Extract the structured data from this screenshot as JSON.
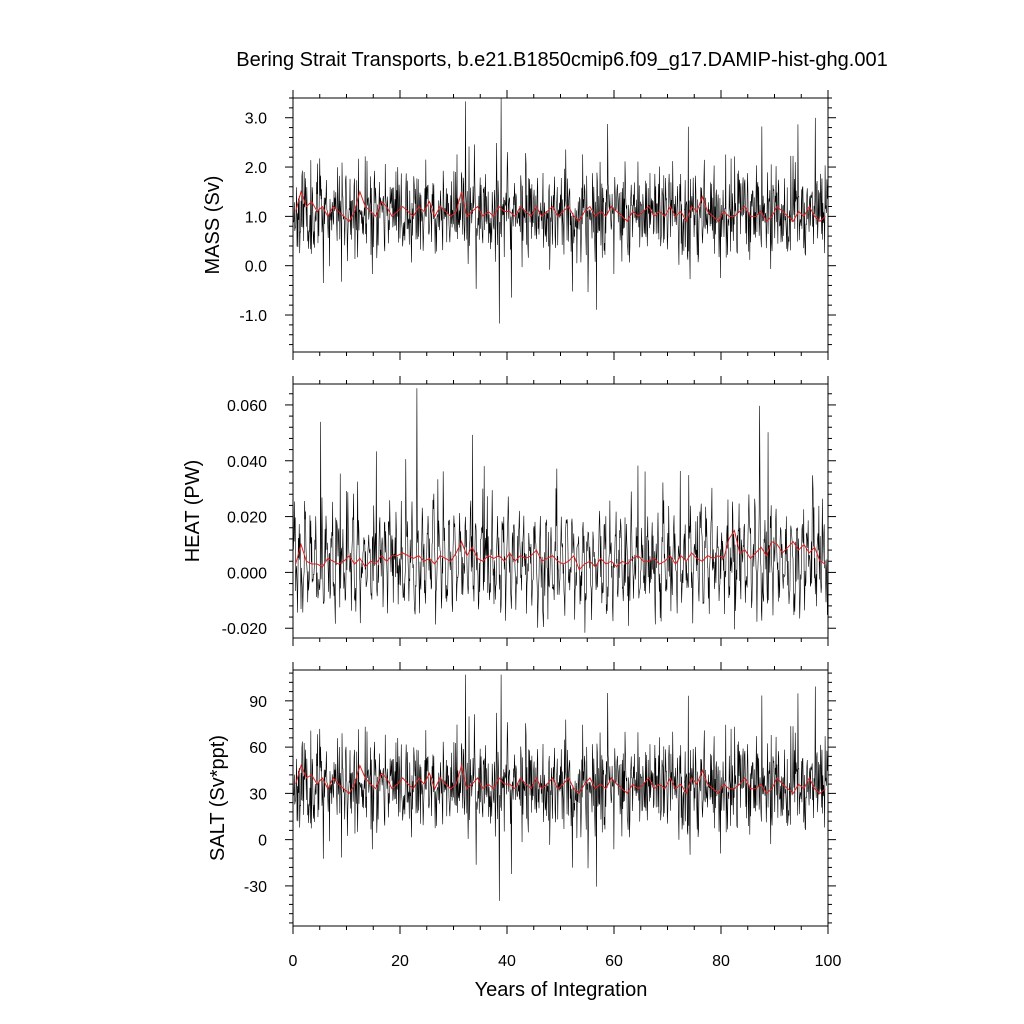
{
  "title": "Bering Strait Transports, b.e21.B1850cmip6.f09_g17.DAMIP-hist-ghg.001",
  "xlabel": "Years of Integration",
  "colors": {
    "raw": "#000000",
    "smoothed": "#e02020"
  },
  "chart_data": [
    {
      "type": "line",
      "ylabel": "MASS (Sv)",
      "xlim": [
        0,
        100
      ],
      "ylim": [
        -1.75,
        3.4
      ],
      "yticks": [
        -1.0,
        0.0,
        1.0,
        2.0,
        3.0
      ],
      "ytick_labels": [
        "-1.0",
        "0.0",
        "1.0",
        "2.0",
        "3.0"
      ],
      "xticks": [
        0,
        20,
        40,
        60,
        80,
        100
      ],
      "xtick_labels": [
        "0",
        "20",
        "40",
        "60",
        "80",
        "100"
      ],
      "series": [
        {
          "style": "monthly",
          "x_step": 0.0833,
          "mean": 1.1,
          "spread": 0.45,
          "min": -1.7,
          "max": 3.4,
          "seed": 11
        },
        {
          "style": "annual",
          "x": [
            0,
            1,
            2,
            3,
            4,
            5,
            6,
            7,
            8,
            9,
            10,
            11,
            12,
            13,
            14,
            15,
            16,
            17,
            18,
            19,
            20,
            21,
            22,
            23,
            24,
            25,
            26,
            27,
            28,
            29,
            30,
            31,
            32,
            33,
            34,
            35,
            36,
            37,
            38,
            39,
            40,
            41,
            42,
            43,
            44,
            45,
            46,
            47,
            48,
            49,
            50,
            51,
            52,
            53,
            54,
            55,
            56,
            57,
            58,
            59,
            60,
            61,
            62,
            63,
            64,
            65,
            66,
            67,
            68,
            69,
            70,
            71,
            72,
            73,
            74,
            75,
            76,
            77,
            78,
            79,
            80,
            81,
            82,
            83,
            84,
            85,
            86,
            87,
            88,
            89,
            90,
            91,
            92,
            93,
            94,
            95,
            96,
            97,
            98,
            99
          ],
          "y": [
            1.1,
            1.5,
            1.2,
            1.3,
            1.1,
            1.2,
            1.0,
            1.2,
            1.1,
            1.0,
            0.9,
            1.1,
            1.5,
            1.2,
            1.1,
            1.0,
            1.3,
            1.2,
            1.0,
            1.1,
            1.2,
            1.1,
            1.0,
            1.2,
            1.1,
            1.3,
            1.0,
            1.2,
            1.1,
            1.0,
            1.1,
            1.5,
            1.0,
            1.1,
            1.2,
            1.0,
            1.1,
            1.0,
            1.2,
            1.1,
            1.1,
            1.0,
            1.2,
            1.1,
            1.0,
            1.2,
            1.0,
            1.1,
            1.2,
            1.0,
            1.1,
            1.2,
            1.0,
            0.9,
            1.1,
            1.2,
            1.0,
            1.1,
            1.0,
            1.2,
            1.1,
            1.0,
            0.9,
            1.1,
            1.0,
            1.1,
            1.2,
            1.0,
            1.1,
            1.0,
            1.2,
            1.0,
            1.1,
            0.9,
            1.2,
            1.1,
            1.4,
            1.1,
            1.0,
            0.9,
            1.1,
            1.0,
            1.0,
            1.1,
            1.2,
            1.0,
            1.0,
            1.1,
            0.9,
            1.0,
            1.2,
            1.1,
            1.0,
            0.9,
            1.1,
            1.0,
            1.2,
            1.0,
            0.9,
            1.0
          ]
        }
      ]
    },
    {
      "type": "line",
      "ylabel": "HEAT (PW)",
      "xlim": [
        0,
        100
      ],
      "ylim": [
        -0.0235,
        0.0675
      ],
      "yticks": [
        -0.02,
        0.0,
        0.02,
        0.04,
        0.06
      ],
      "ytick_labels": [
        "-0.020",
        "0.000",
        "0.020",
        "0.040",
        "0.060"
      ],
      "xticks": [
        0,
        20,
        40,
        60,
        80,
        100
      ],
      "xtick_labels": [
        "0",
        "20",
        "40",
        "60",
        "80",
        "100"
      ],
      "series": [
        {
          "style": "monthly_seasonal",
          "x_step": 0.0833,
          "mean": 0.004,
          "spread": 0.012,
          "min": -0.023,
          "max": 0.066,
          "seed": 29
        },
        {
          "style": "annual",
          "x": [
            0,
            1,
            2,
            3,
            4,
            5,
            6,
            7,
            8,
            9,
            10,
            11,
            12,
            13,
            14,
            15,
            16,
            17,
            18,
            19,
            20,
            21,
            22,
            23,
            24,
            25,
            26,
            27,
            28,
            29,
            30,
            31,
            32,
            33,
            34,
            35,
            36,
            37,
            38,
            39,
            40,
            41,
            42,
            43,
            44,
            45,
            46,
            47,
            48,
            49,
            50,
            51,
            52,
            53,
            54,
            55,
            56,
            57,
            58,
            59,
            60,
            61,
            62,
            63,
            64,
            65,
            66,
            67,
            68,
            69,
            70,
            71,
            72,
            73,
            74,
            75,
            76,
            77,
            78,
            79,
            80,
            81,
            82,
            83,
            84,
            85,
            86,
            87,
            88,
            89,
            90,
            91,
            92,
            93,
            94,
            95,
            96,
            97,
            98,
            99
          ],
          "y": [
            0.003,
            0.01,
            0.004,
            0.003,
            0.003,
            0.002,
            0.005,
            0.004,
            0.003,
            0.004,
            0.006,
            0.003,
            0.005,
            0.002,
            0.004,
            0.003,
            0.006,
            0.004,
            0.006,
            0.006,
            0.007,
            0.006,
            0.005,
            0.006,
            0.004,
            0.005,
            0.003,
            0.006,
            0.005,
            0.004,
            0.007,
            0.011,
            0.006,
            0.009,
            0.005,
            0.004,
            0.006,
            0.005,
            0.006,
            0.004,
            0.007,
            0.004,
            0.006,
            0.005,
            0.006,
            0.008,
            0.004,
            0.005,
            0.006,
            0.004,
            0.003,
            0.004,
            0.006,
            0.001,
            0.003,
            0.004,
            0.002,
            0.005,
            0.003,
            0.004,
            0.002,
            0.004,
            0.003,
            0.005,
            0.006,
            0.004,
            0.004,
            0.005,
            0.003,
            0.004,
            0.006,
            0.003,
            0.006,
            0.004,
            0.007,
            0.005,
            0.004,
            0.006,
            0.005,
            0.006,
            0.005,
            0.012,
            0.015,
            0.007,
            0.008,
            0.005,
            0.007,
            0.009,
            0.006,
            0.011,
            0.01,
            0.007,
            0.009,
            0.011,
            0.008,
            0.01,
            0.007,
            0.009,
            0.004,
            0.003
          ]
        }
      ]
    },
    {
      "type": "line",
      "ylabel": "SALT (Sv*ppt)",
      "xlim": [
        0,
        100
      ],
      "ylim": [
        -56,
        110
      ],
      "yticks": [
        -30,
        0,
        30,
        60,
        90
      ],
      "ytick_labels": [
        "-30",
        "0",
        "30",
        "60",
        "90"
      ],
      "xticks": [
        0,
        20,
        40,
        60,
        80,
        100
      ],
      "xtick_labels": [
        "0",
        "20",
        "40",
        "60",
        "80",
        "100"
      ],
      "series": [
        {
          "style": "monthly",
          "x_step": 0.0833,
          "mean": 36,
          "spread": 15,
          "min": -55,
          "max": 107,
          "seed": 11
        },
        {
          "style": "annual",
          "x": [
            0,
            1,
            2,
            3,
            4,
            5,
            6,
            7,
            8,
            9,
            10,
            11,
            12,
            13,
            14,
            15,
            16,
            17,
            18,
            19,
            20,
            21,
            22,
            23,
            24,
            25,
            26,
            27,
            28,
            29,
            30,
            31,
            32,
            33,
            34,
            35,
            36,
            37,
            38,
            39,
            40,
            41,
            42,
            43,
            44,
            45,
            46,
            47,
            48,
            49,
            50,
            51,
            52,
            53,
            54,
            55,
            56,
            57,
            58,
            59,
            60,
            61,
            62,
            63,
            64,
            65,
            66,
            67,
            68,
            69,
            70,
            71,
            72,
            73,
            74,
            75,
            76,
            77,
            78,
            79,
            80,
            81,
            82,
            83,
            84,
            85,
            86,
            87,
            88,
            89,
            90,
            91,
            92,
            93,
            94,
            95,
            96,
            97,
            98,
            99
          ],
          "y": [
            36,
            48,
            40,
            42,
            36,
            40,
            33,
            40,
            36,
            33,
            30,
            36,
            48,
            40,
            36,
            33,
            43,
            40,
            33,
            36,
            40,
            36,
            33,
            40,
            36,
            43,
            33,
            40,
            36,
            33,
            36,
            48,
            33,
            36,
            40,
            33,
            36,
            33,
            40,
            36,
            36,
            33,
            40,
            36,
            33,
            40,
            33,
            36,
            40,
            33,
            36,
            40,
            33,
            30,
            36,
            40,
            33,
            36,
            33,
            40,
            36,
            33,
            30,
            36,
            33,
            36,
            40,
            33,
            36,
            33,
            40,
            33,
            36,
            30,
            40,
            36,
            45,
            36,
            33,
            30,
            36,
            33,
            33,
            36,
            40,
            33,
            33,
            36,
            30,
            33,
            40,
            36,
            33,
            30,
            36,
            33,
            40,
            33,
            30,
            33
          ]
        }
      ]
    }
  ]
}
